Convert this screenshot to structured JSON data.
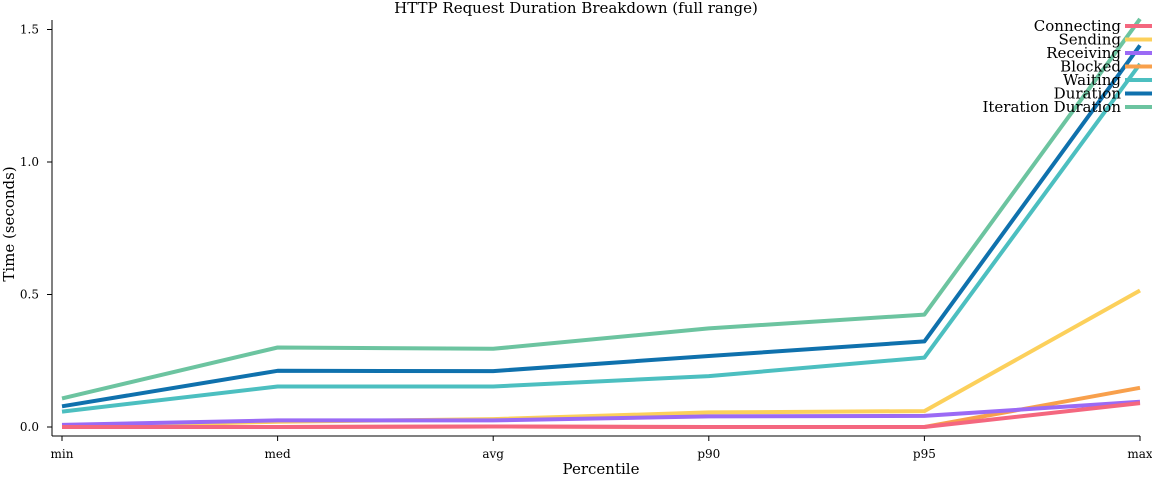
{
  "chart_data": {
    "type": "line",
    "title": "HTTP Request Duration Breakdown (full range)",
    "xlabel": "Percentile",
    "ylabel": "Time (seconds)",
    "categories": [
      "min",
      "med",
      "avg",
      "p90",
      "p95",
      "max"
    ],
    "yticks": [
      "0.0",
      "0.5",
      "1.0",
      "1.5"
    ],
    "ylim": [
      0,
      1.55
    ],
    "legend_position": "top-right",
    "grid": false,
    "series": [
      {
        "name": "Connecting",
        "color": "#f4677f",
        "values": [
          0.0,
          0.0,
          0.002,
          0.0,
          0.0,
          0.09
        ]
      },
      {
        "name": "Sending",
        "color": "#fcd05b",
        "values": [
          0.0,
          0.02,
          0.03,
          0.055,
          0.06,
          0.515
        ]
      },
      {
        "name": "Receiving",
        "color": "#9b6af5",
        "values": [
          0.008,
          0.025,
          0.025,
          0.04,
          0.042,
          0.095
        ]
      },
      {
        "name": "Blocked",
        "color": "#f8a04c",
        "values": [
          0.0,
          0.0,
          0.002,
          0.0,
          0.0,
          0.148
        ]
      },
      {
        "name": "Waiting",
        "color": "#4cbfc0",
        "values": [
          0.058,
          0.153,
          0.153,
          0.192,
          0.262,
          1.37
        ]
      },
      {
        "name": "Duration",
        "color": "#0f71ad",
        "values": [
          0.078,
          0.212,
          0.211,
          0.268,
          0.323,
          1.44
        ]
      },
      {
        "name": "Iteration Duration",
        "color": "#6cc4a0",
        "values": [
          0.108,
          0.3,
          0.295,
          0.372,
          0.424,
          1.54
        ]
      }
    ]
  }
}
